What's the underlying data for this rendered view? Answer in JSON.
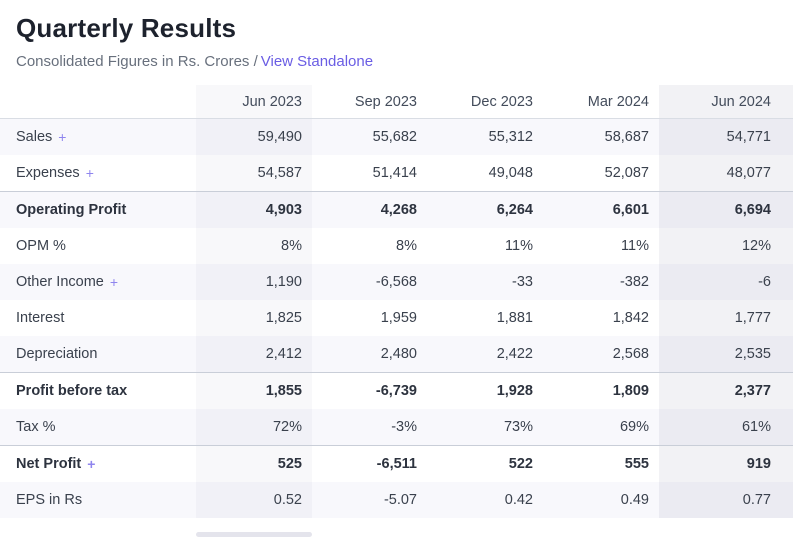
{
  "header": {
    "title": "Quarterly Results",
    "subtitle_prefix": "Consolidated Figures in Rs. Crores /",
    "standalone_link": "View Standalone"
  },
  "table": {
    "expand_symbol": "+",
    "columns": [
      "Jun 2023",
      "Sep 2023",
      "Dec 2023",
      "Mar 2024",
      "Jun 2024"
    ],
    "rows": [
      {
        "label": "Sales",
        "expandable": true,
        "bold": false,
        "top_border": false,
        "values": [
          "59,490",
          "55,682",
          "55,312",
          "58,687",
          "54,771"
        ]
      },
      {
        "label": "Expenses",
        "expandable": true,
        "bold": false,
        "top_border": false,
        "values": [
          "54,587",
          "51,414",
          "49,048",
          "52,087",
          "48,077"
        ]
      },
      {
        "label": "Operating Profit",
        "expandable": false,
        "bold": true,
        "top_border": true,
        "values": [
          "4,903",
          "4,268",
          "6,264",
          "6,601",
          "6,694"
        ]
      },
      {
        "label": "OPM %",
        "expandable": false,
        "bold": false,
        "top_border": false,
        "values": [
          "8%",
          "8%",
          "11%",
          "11%",
          "12%"
        ]
      },
      {
        "label": "Other Income",
        "expandable": true,
        "bold": false,
        "top_border": false,
        "values": [
          "1,190",
          "-6,568",
          "-33",
          "-382",
          "-6"
        ]
      },
      {
        "label": "Interest",
        "expandable": false,
        "bold": false,
        "top_border": false,
        "values": [
          "1,825",
          "1,959",
          "1,881",
          "1,842",
          "1,777"
        ]
      },
      {
        "label": "Depreciation",
        "expandable": false,
        "bold": false,
        "top_border": false,
        "values": [
          "2,412",
          "2,480",
          "2,422",
          "2,568",
          "2,535"
        ]
      },
      {
        "label": "Profit before tax",
        "expandable": false,
        "bold": true,
        "top_border": true,
        "values": [
          "1,855",
          "-6,739",
          "1,928",
          "1,809",
          "2,377"
        ]
      },
      {
        "label": "Tax %",
        "expandable": false,
        "bold": false,
        "top_border": false,
        "values": [
          "72%",
          "-3%",
          "73%",
          "69%",
          "61%"
        ]
      },
      {
        "label": "Net Profit",
        "expandable": true,
        "bold": true,
        "top_border": true,
        "values": [
          "525",
          "-6,511",
          "522",
          "555",
          "919"
        ]
      },
      {
        "label": "EPS in Rs",
        "expandable": false,
        "bold": false,
        "top_border": false,
        "values": [
          "0.52",
          "-5.07",
          "0.42",
          "0.49",
          "0.77"
        ]
      }
    ]
  },
  "colors": {
    "link": "#6a5de4",
    "plus": "#8f85ee",
    "title_text": "#1d222d",
    "subtitle_text": "#68707d",
    "body_text": "#3a414d",
    "bold_text": "#2d333f",
    "header_text": "#434c5b",
    "stripe": "#f8f8fc",
    "col_first": "#70709E0D",
    "col_last": "#64648C16",
    "border_strong": "#c9ced8",
    "border_header": "#d9dde4",
    "scroll_thumb": "#e4e4ec"
  }
}
